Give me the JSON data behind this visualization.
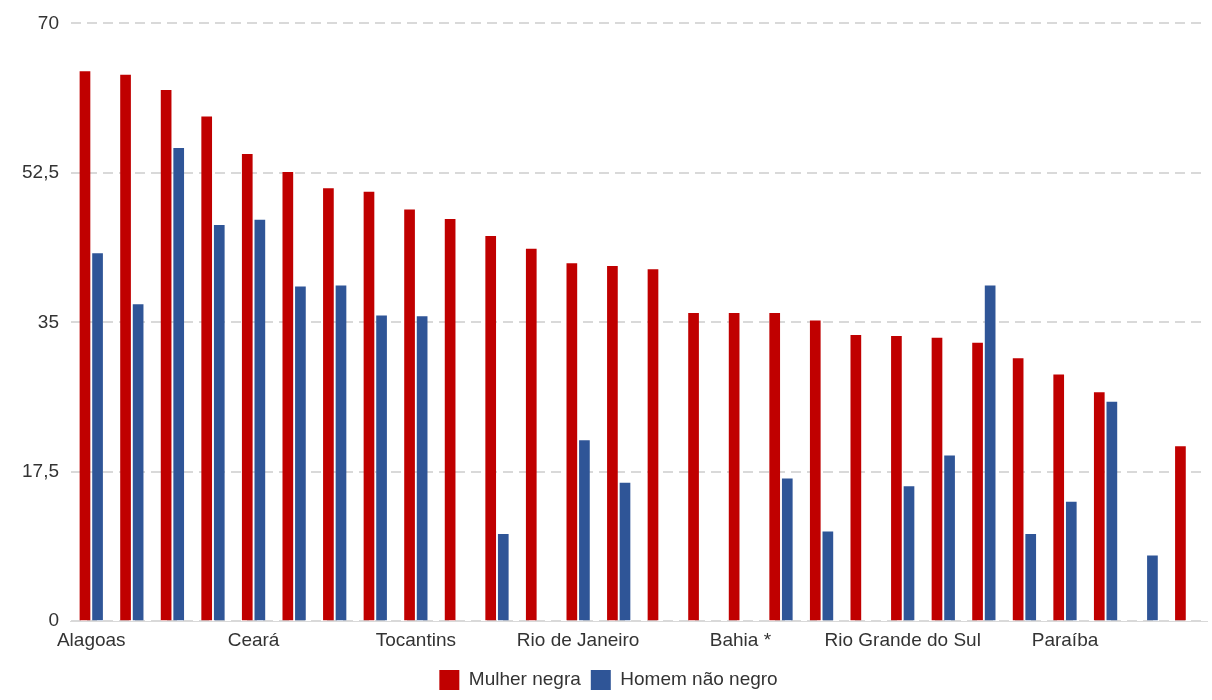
{
  "chart_data": {
    "type": "bar",
    "categories": [
      "Alagoas",
      null,
      null,
      null,
      "Ceará",
      null,
      null,
      null,
      "Tocantins",
      null,
      null,
      null,
      "Rio de Janeiro",
      null,
      null,
      null,
      "Bahia *",
      null,
      null,
      null,
      "Rio Grande do Sul",
      null,
      null,
      null,
      "Paraíba",
      null,
      null,
      null
    ],
    "series": [
      {
        "name": "Mulher negra",
        "color": "#c00000",
        "values": [
          64.4,
          64.0,
          62.2,
          59.1,
          54.7,
          52.6,
          50.7,
          50.3,
          48.2,
          47.1,
          45.1,
          43.6,
          41.9,
          41.6,
          41.2,
          36.1,
          36.1,
          36.1,
          35.2,
          33.5,
          33.4,
          33.2,
          32.6,
          30.8,
          28.9,
          26.8,
          null,
          20.5
        ]
      },
      {
        "name": "Homem não negro",
        "color": "#2f5597",
        "values": [
          43.1,
          37.1,
          55.4,
          46.4,
          47.0,
          39.2,
          39.3,
          35.8,
          35.7,
          null,
          10.2,
          null,
          21.2,
          16.2,
          null,
          null,
          null,
          16.7,
          10.5,
          null,
          15.8,
          19.4,
          39.3,
          10.2,
          14.0,
          25.7,
          7.7,
          null
        ]
      }
    ],
    "ylim": [
      0,
      70
    ],
    "yticks": [
      0,
      {
        "value": 17.5,
        "label": "17,5"
      },
      35,
      {
        "value": 52.5,
        "label": "52,5"
      },
      70
    ],
    "grid": "y",
    "legend": "bottom"
  }
}
